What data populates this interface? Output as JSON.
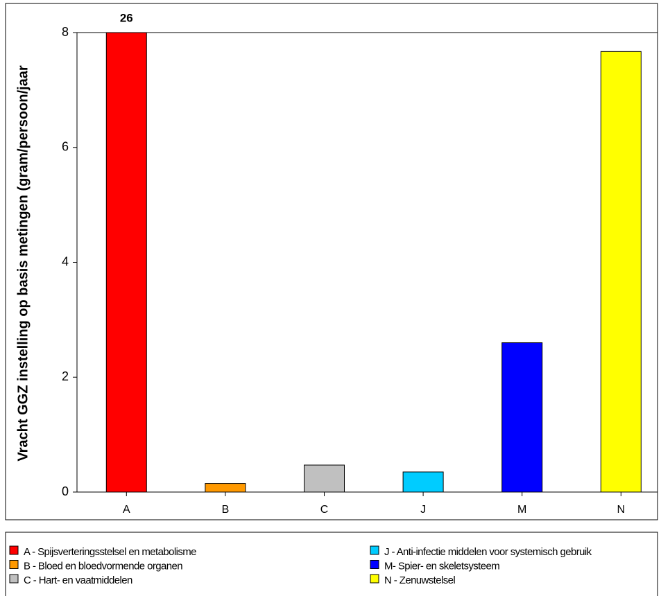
{
  "chart_data": {
    "type": "bar",
    "y_label": "Vracht GGZ instelling op basis metingen (gram/persoon/jaar",
    "categories": [
      "A",
      "B",
      "C",
      "J",
      "M",
      "N"
    ],
    "values": [
      26,
      0.15,
      0.47,
      0.35,
      2.6,
      7.67
    ],
    "value_labels": [
      "26",
      null,
      null,
      null,
      null,
      null
    ],
    "colors": [
      "#ff0000",
      "#ff9900",
      "#c0c0c0",
      "#00ccff",
      "#0000ff",
      "#ffff00"
    ],
    "ylim": [
      0,
      8
    ],
    "yticks": [
      0,
      2,
      4,
      6,
      8
    ],
    "grid": false,
    "legend": [
      "A - Spijsverteringsstelsel en metabolisme",
      "B - Bloed en bloedvormende organen",
      "C - Hart- en vaatmiddelen",
      "J - Anti-infectie middelen voor systemisch gebruik",
      "M- Spier- en skeletsysteem",
      "N - Zenuwstelsel"
    ]
  }
}
